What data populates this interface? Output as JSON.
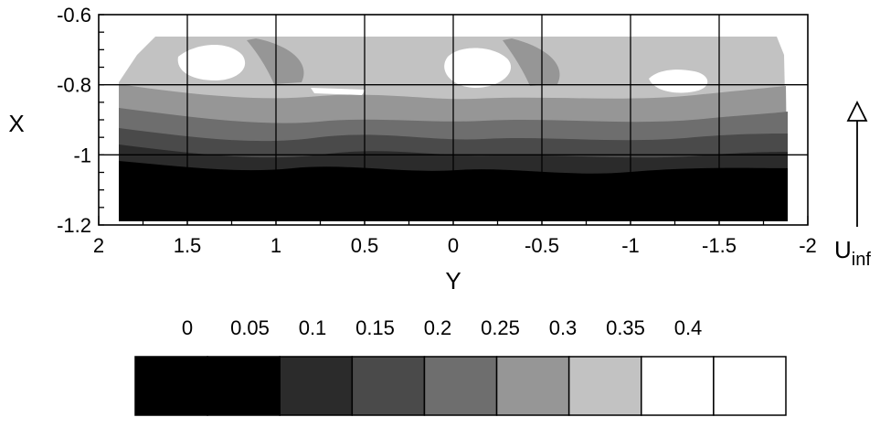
{
  "chart_data": {
    "type": "heatmap",
    "title": "",
    "xlabel": "Y",
    "ylabel": "X",
    "xlim": [
      2,
      -2
    ],
    "ylim": [
      -1.2,
      -0.6
    ],
    "x_reversed": true,
    "grid": true,
    "x_ticks": [
      "2",
      "1.5",
      "1",
      "0.5",
      "0",
      "-0.5",
      "-1",
      "-1.5",
      "-2"
    ],
    "x_tick_values": [
      2,
      1.5,
      1,
      0.5,
      0,
      -0.5,
      -1,
      -1.5,
      -2
    ],
    "y_ticks": [
      "-0.6",
      "-0.8",
      "-1",
      "-1.2"
    ],
    "y_tick_values": [
      -0.6,
      -0.8,
      -1.0,
      -1.2
    ],
    "data_extent": {
      "y_range": [
        1.9,
        -1.85
      ],
      "x_range": [
        -1.18,
        -0.67
      ]
    },
    "contour_levels": [
      0,
      0.05,
      0.1,
      0.15,
      0.2,
      0.25,
      0.3,
      0.35,
      0.4
    ],
    "colorbar": {
      "labels": [
        "0",
        "0.05",
        "0.1",
        "0.15",
        "0.2",
        "0.25",
        "0.3",
        "0.35",
        "0.4"
      ],
      "colors": [
        "#000000",
        "#000000",
        "#2b2b2b",
        "#4a4a4a",
        "#6e6e6e",
        "#969696",
        "#c2c2c2",
        "#ffffff",
        "#ffffff"
      ]
    },
    "flow_arrow": {
      "label_main": "U",
      "label_sub": "inf",
      "direction": "up"
    }
  }
}
